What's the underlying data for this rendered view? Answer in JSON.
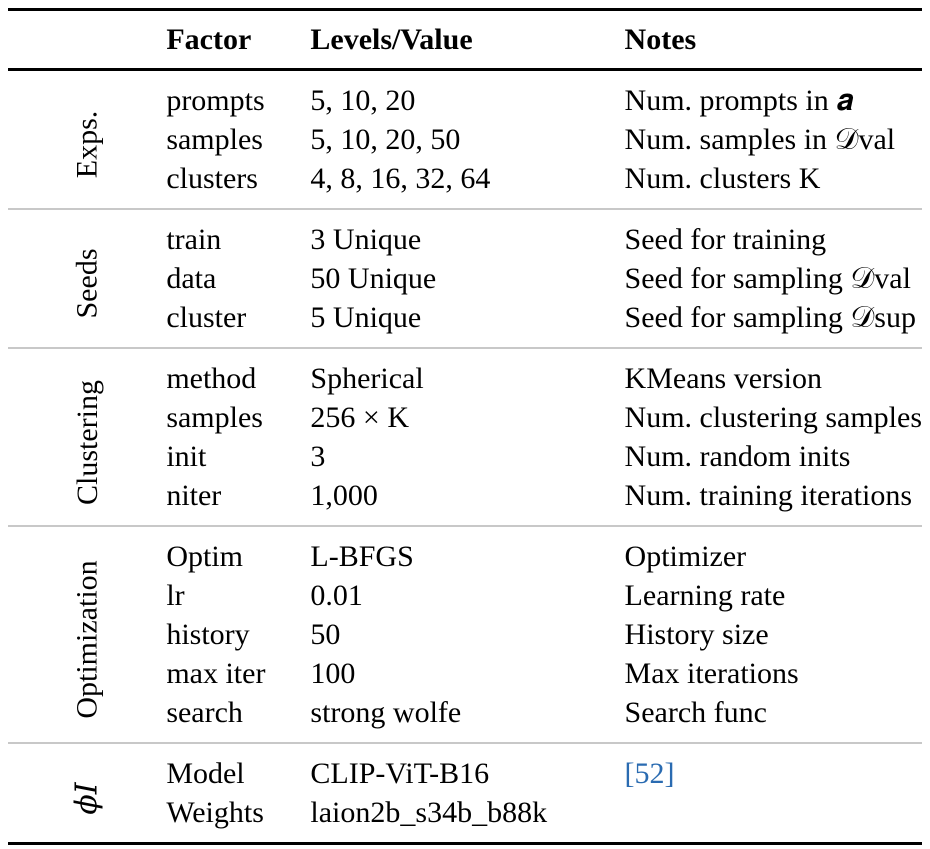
{
  "header": {
    "factor": "Factor",
    "levels": "Levels/Value",
    "notes": "Notes"
  },
  "groups": [
    {
      "label": "Exps.",
      "rows": [
        {
          "factor": "prompts",
          "level": "5, 10, 20",
          "notes": "Num. prompts in 𝒂"
        },
        {
          "factor": "samples",
          "level": "5, 10, 20, 50",
          "notes": "Num. samples in 𝒟val"
        },
        {
          "factor": "clusters",
          "level": "4, 8, 16, 32, 64",
          "notes": "Num. clusters K"
        }
      ]
    },
    {
      "label": "Seeds",
      "rows": [
        {
          "factor": "train",
          "level": "3 Unique",
          "notes": "Seed for training"
        },
        {
          "factor": "data",
          "level": "50 Unique",
          "notes": "Seed for sampling 𝒟val"
        },
        {
          "factor": "cluster",
          "level": "5 Unique",
          "notes": "Seed for sampling 𝒟sup"
        }
      ]
    },
    {
      "label": "Clustering",
      "rows": [
        {
          "factor": "method",
          "level": "Spherical",
          "notes": "KMeans version"
        },
        {
          "factor": "samples",
          "level": "256 × K",
          "notes": "Num. clustering samples"
        },
        {
          "factor": "init",
          "level": "3",
          "notes": "Num. random inits"
        },
        {
          "factor": "niter",
          "level": "1,000",
          "notes": "Num. training iterations"
        }
      ]
    },
    {
      "label": "Optimization",
      "rows": [
        {
          "factor": "Optim",
          "level": "L-BFGS",
          "notes": "Optimizer"
        },
        {
          "factor": "lr",
          "level": "0.01",
          "notes": "Learning rate"
        },
        {
          "factor": "history",
          "level": "50",
          "notes": "History size"
        },
        {
          "factor": "max iter",
          "level": "100",
          "notes": "Max iterations"
        },
        {
          "factor": "search",
          "level": "strong wolfe",
          "notes": "Search func"
        }
      ]
    },
    {
      "label": "ϕI",
      "rows": [
        {
          "factor": "Model",
          "level": "CLIP-ViT-B16",
          "notes": "[52]"
        },
        {
          "factor": "Weights",
          "level": "laion2b_s34b_b88k",
          "notes": ""
        }
      ]
    }
  ],
  "colors": {
    "citation": "#2a6bb1",
    "separator": "#c8c8c8"
  }
}
